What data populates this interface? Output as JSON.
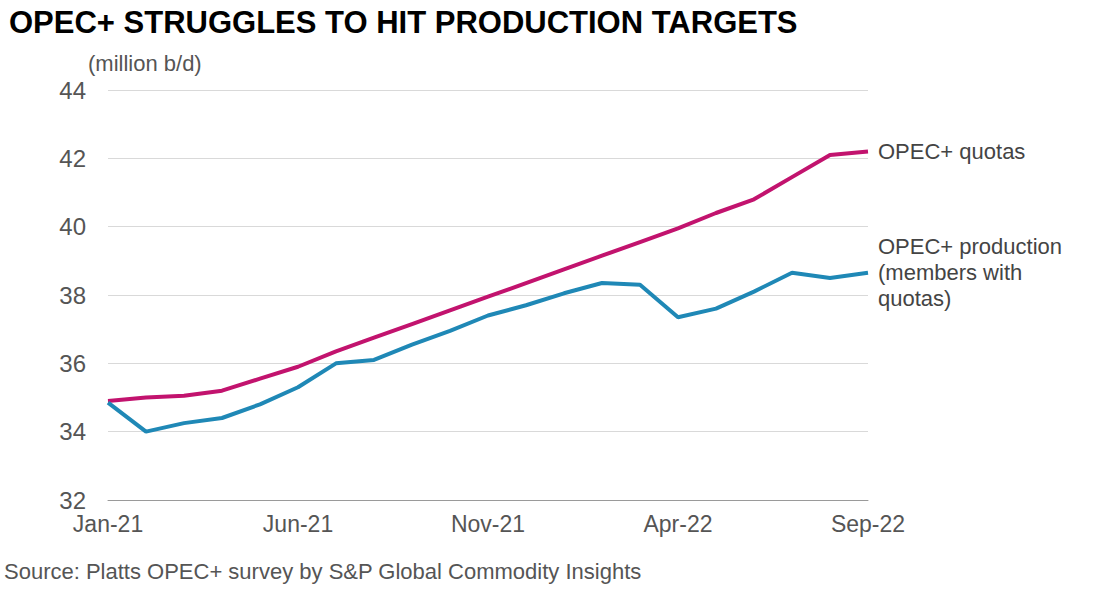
{
  "chart_data": {
    "type": "line",
    "title": "OPEC+ STRUGGLES TO HIT PRODUCTION TARGETS",
    "y_label": "(million b/d)",
    "source": "Source: Platts OPEC+ survey by S&P Global Commodity Insights",
    "categories": [
      "Jan-21",
      null,
      null,
      null,
      null,
      "Jun-21",
      null,
      null,
      null,
      null,
      "Nov-21",
      null,
      null,
      null,
      null,
      "Apr-22",
      null,
      null,
      null,
      null,
      "Sep-22"
    ],
    "series": [
      {
        "name": "OPEC+ quotas",
        "color": "#c2136e",
        "values": [
          34.9,
          35.0,
          35.05,
          35.2,
          35.55,
          35.9,
          36.35,
          36.75,
          37.15,
          37.55,
          37.95,
          38.35,
          38.75,
          39.15,
          39.55,
          39.95,
          40.4,
          40.8,
          41.45,
          42.1,
          42.2
        ]
      },
      {
        "name": "OPEC+ production (members with quotas)",
        "color": "#1f88b6",
        "values": [
          34.85,
          34.0,
          34.25,
          34.4,
          34.8,
          35.3,
          36.0,
          36.1,
          36.55,
          36.95,
          37.4,
          37.7,
          38.05,
          38.35,
          38.3,
          37.35,
          37.6,
          38.1,
          38.65,
          38.5,
          38.65
        ]
      }
    ],
    "ylim": [
      32,
      44
    ],
    "yticks": [
      32,
      34,
      36,
      38,
      40,
      42,
      44
    ],
    "grid": true
  }
}
